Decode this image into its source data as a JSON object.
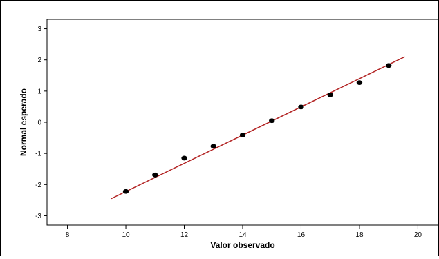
{
  "chart_data": {
    "type": "scatter",
    "title": "",
    "xlabel": "Valor observado",
    "ylabel": "Normal esperado",
    "xlim": [
      7.3,
      20.7
    ],
    "ylim": [
      -3.3,
      3.3
    ],
    "x_ticks": [
      "8",
      "10",
      "12",
      "14",
      "16",
      "18",
      "20"
    ],
    "y_ticks": [
      "3",
      "2",
      "1",
      "0",
      "-1",
      "-2",
      "-3"
    ],
    "grid": false,
    "points": [
      {
        "x": 10,
        "y": -2.22
      },
      {
        "x": 11,
        "y": -1.69
      },
      {
        "x": 12,
        "y": -1.15
      },
      {
        "x": 13,
        "y": -0.77
      },
      {
        "x": 14,
        "y": -0.41
      },
      {
        "x": 15,
        "y": 0.05
      },
      {
        "x": 16,
        "y": 0.49
      },
      {
        "x": 17,
        "y": 0.88
      },
      {
        "x": 18,
        "y": 1.27
      },
      {
        "x": 19,
        "y": 1.82
      }
    ],
    "reference_line": {
      "x": [
        9.5,
        19.55
      ],
      "y": [
        -2.45,
        2.1
      ]
    },
    "colors": {
      "points": "#000000",
      "line": "#b22222",
      "axes": "#000000",
      "background": "#ffffff"
    }
  }
}
